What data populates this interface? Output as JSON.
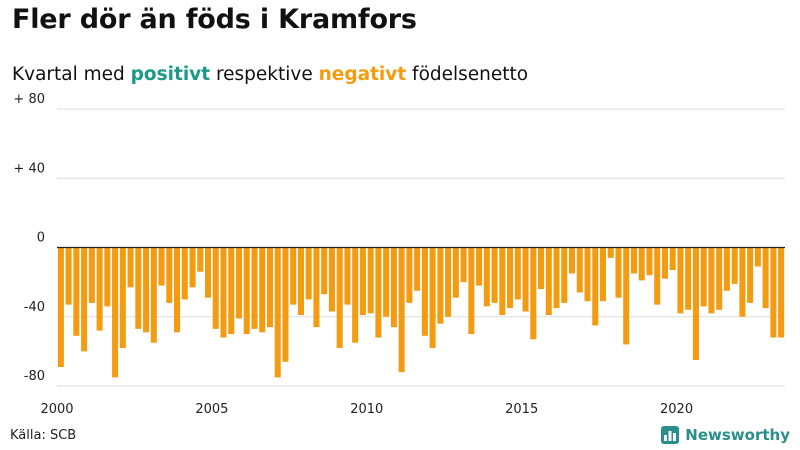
{
  "title": "Fler dör än föds i Kramfors",
  "subtitle": {
    "prefix": "Kvartal med ",
    "positive_word": "positivt",
    "middle": " respektive ",
    "negative_word": "negativt",
    "suffix": " födelsenetto"
  },
  "source": "Källa: SCB",
  "brand": {
    "name": "Newsworthy",
    "icon": "newsworthy-logo-icon"
  },
  "colors": {
    "positive": "#1b9a89",
    "negative": "#f39c12",
    "grid": "#dddddd",
    "zero_line": "#222222"
  },
  "chart_data": {
    "type": "bar",
    "title": "Fler dör än föds i Kramfors",
    "subtitle": "Kvartal med positivt respektive negativt födelsenetto",
    "xlabel": "",
    "ylabel": "",
    "ylim": [
      -80,
      80
    ],
    "grid": true,
    "y_ticks": [
      80,
      40,
      0,
      -40,
      -80
    ],
    "y_tick_labels": [
      "+ 80",
      "+ 40",
      "0",
      "-40",
      "-80"
    ],
    "x_tick_labels": [
      "2000",
      "2005",
      "2010",
      "2015",
      "2020"
    ],
    "x_start_year": 2000,
    "x_end_year": 2023,
    "periods_per_year": 4,
    "series": [
      {
        "values": [
          -69,
          -33,
          -51,
          -60,
          -32,
          -48,
          -34,
          -75,
          -58,
          -23,
          -47,
          -49,
          -55,
          -22,
          -32,
          -49,
          -30,
          -23,
          -14,
          -29,
          -47,
          -52,
          -50,
          -41,
          -50,
          -47,
          -49,
          -46,
          -75,
          -66,
          -33,
          -39,
          -30,
          -46,
          -27,
          -37,
          -58,
          -33,
          -55,
          -39,
          -38,
          -52,
          -40,
          -46,
          -72,
          -32,
          -25,
          -51,
          -58,
          -44,
          -40,
          -29,
          -20,
          -50,
          -22,
          -34,
          -32,
          -39,
          -35,
          -30,
          -37,
          -53,
          -24,
          -39,
          -35,
          -32,
          -15,
          -26,
          -31,
          -45,
          -31,
          -6,
          -29,
          -56,
          -15,
          -19,
          -16,
          -33,
          -18,
          -13,
          -38,
          -36,
          -65,
          -34,
          -38,
          -36,
          -25,
          -21,
          -40,
          -32,
          -11,
          -35,
          -52,
          -52
        ]
      }
    ]
  }
}
